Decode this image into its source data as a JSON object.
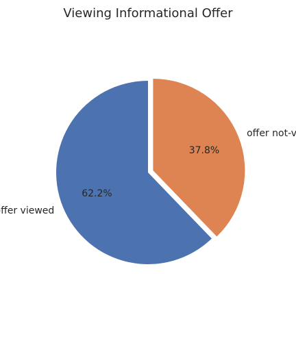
{
  "chart_data": {
    "type": "pie",
    "title": "Viewing Informational Offer",
    "slices": [
      {
        "label": "offer viewed",
        "value": 62.2,
        "pct_label": "62.2%",
        "color": "#4c72b0",
        "exploded": false
      },
      {
        "label": "offer not-viewed",
        "value": 37.8,
        "pct_label": "37.8%",
        "color": "#dd8452",
        "exploded": true
      }
    ],
    "start_angle_deg": 90,
    "direction": "counterclockwise",
    "legend": "none"
  }
}
